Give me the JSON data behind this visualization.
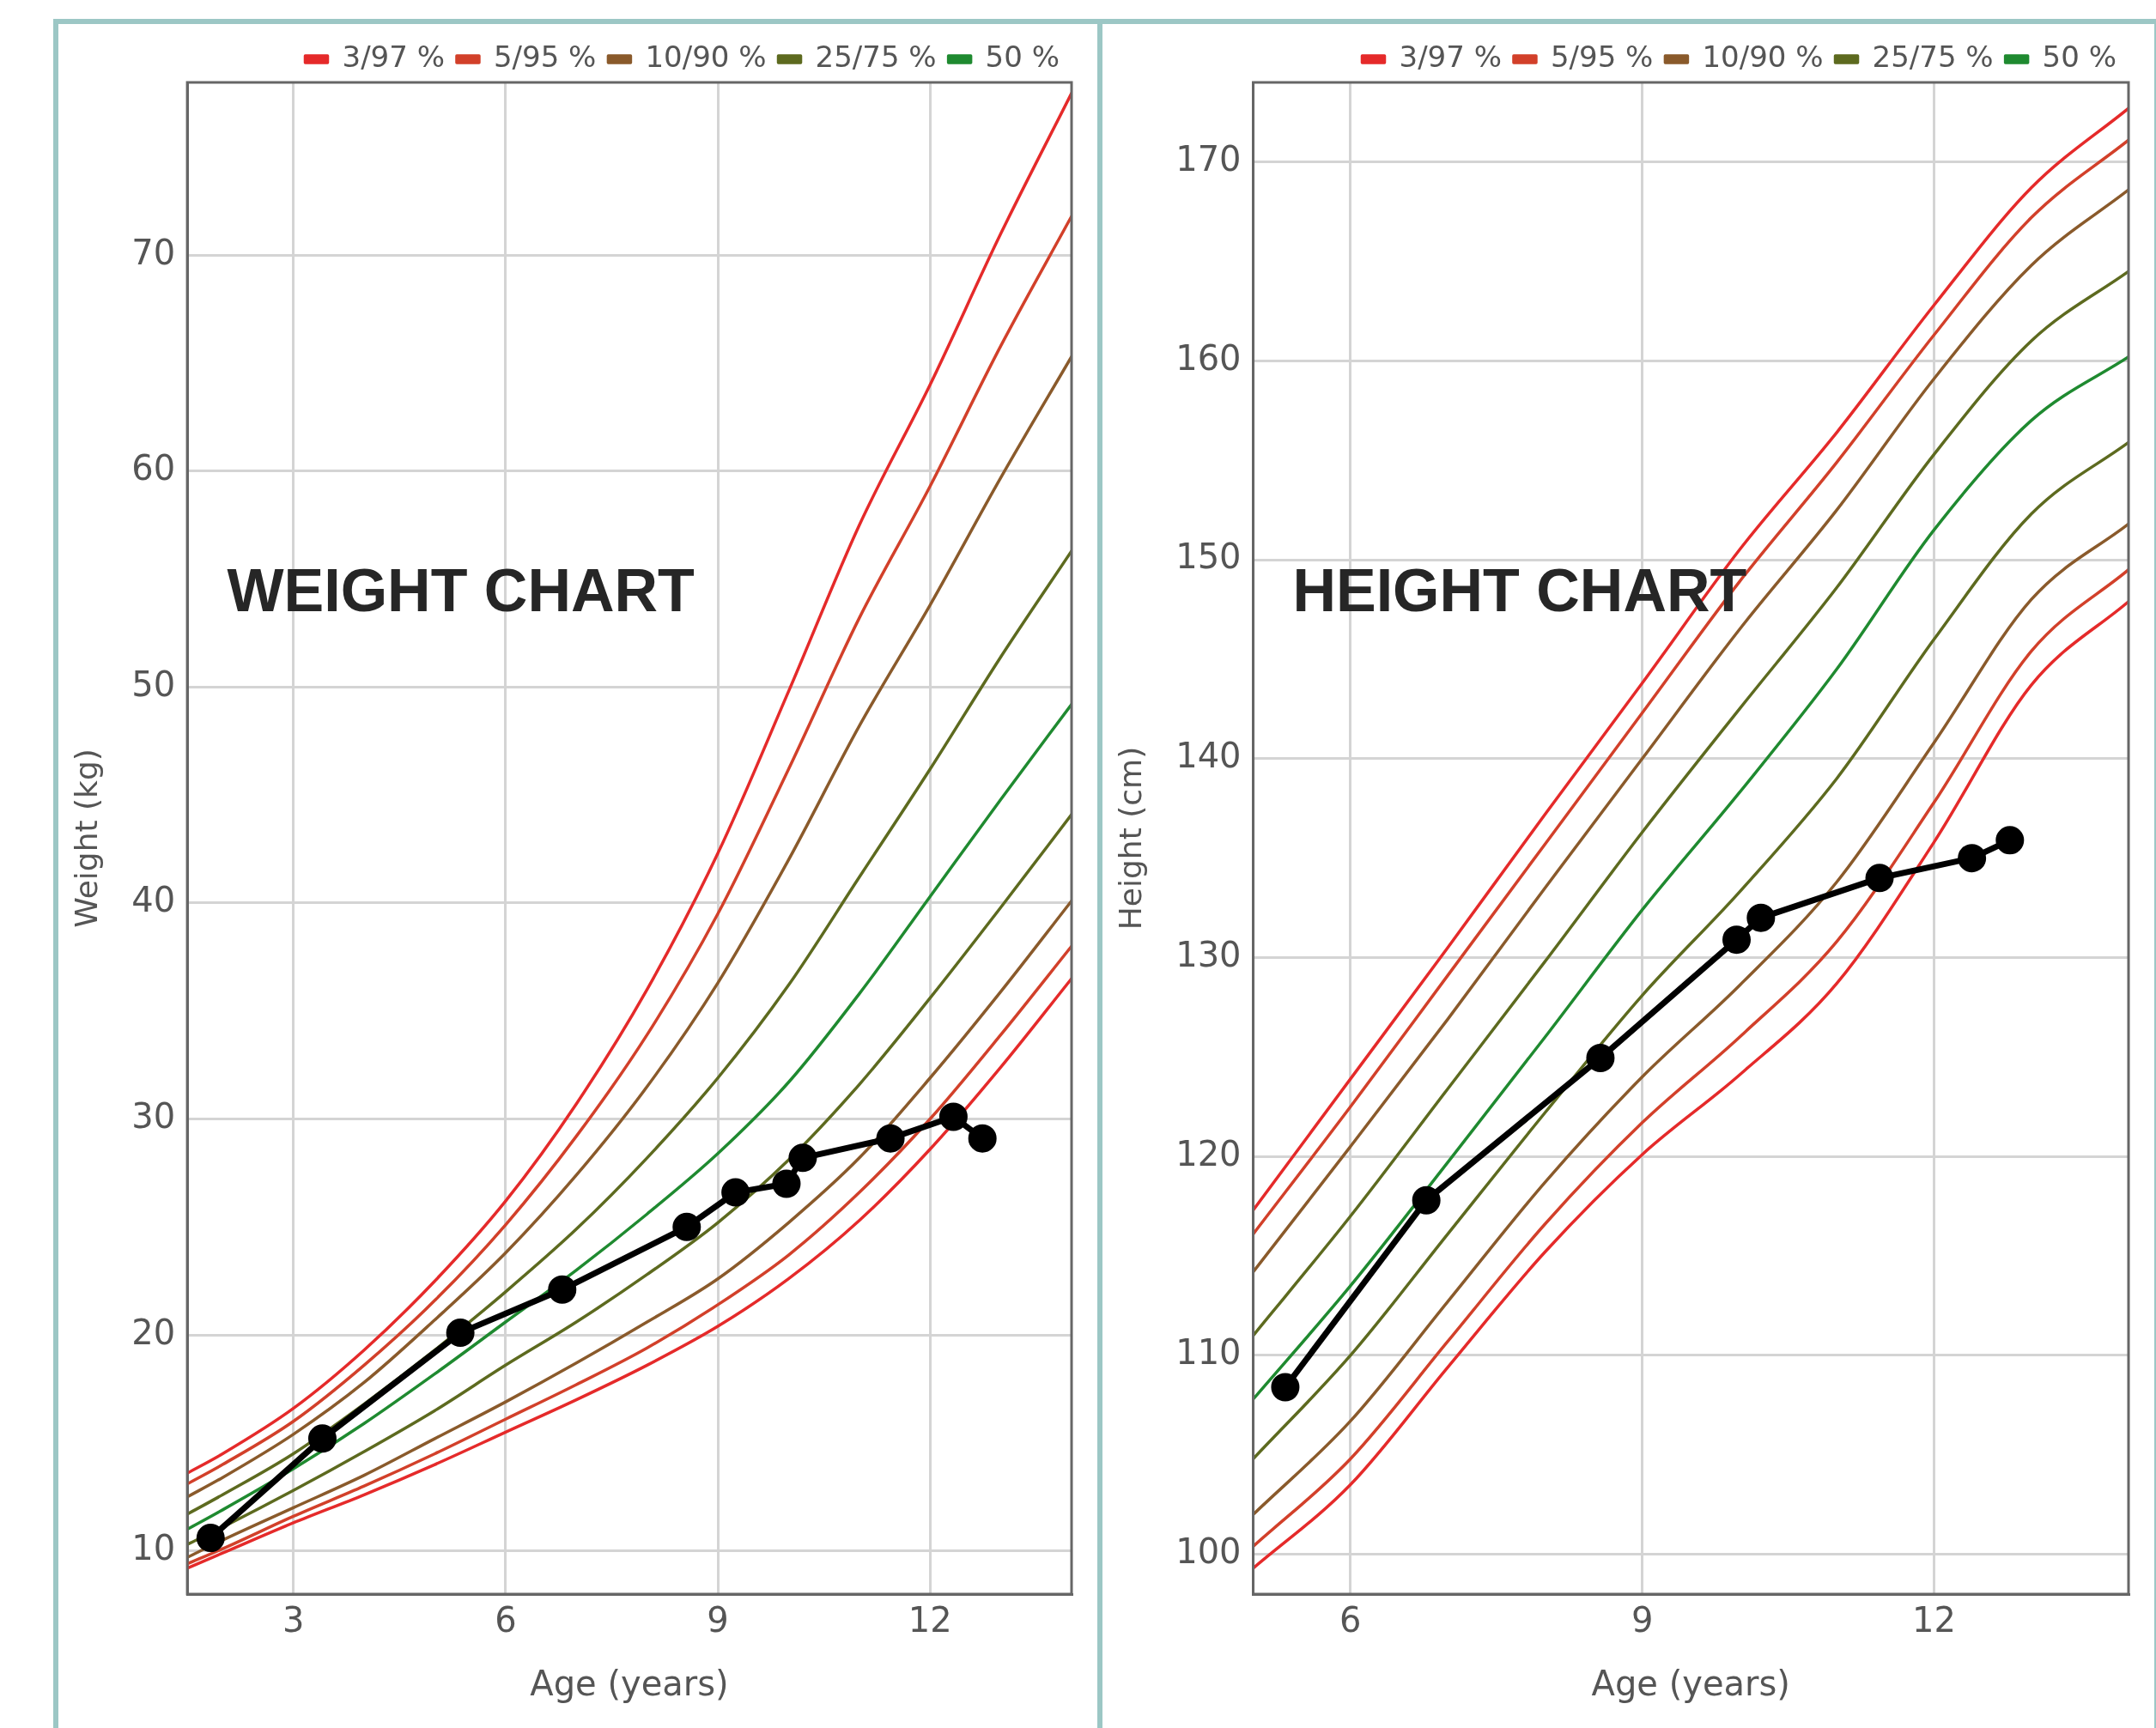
{
  "chart_data": [
    {
      "type": "line",
      "xlabel": "Age (years)",
      "ylabel": "Weight (kg)",
      "annotations": [
        "WEIGHT CHART"
      ],
      "x": [
        1.5,
        2,
        3,
        4,
        5,
        6,
        7,
        8,
        9,
        10,
        11,
        12,
        13,
        14
      ],
      "xlim": [
        1.5,
        14
      ],
      "xticks": [
        3,
        6,
        9,
        12
      ],
      "ylim": [
        8,
        78
      ],
      "yticks": [
        10,
        20,
        30,
        40,
        50,
        60,
        70
      ],
      "grid": true,
      "legend": "top right",
      "marker": "none",
      "line_style": "solid",
      "series": [
        {
          "name": "3/97 %",
          "color": "#e52a2a",
          "values": [
            9.2,
            9.9,
            11.3,
            12.6,
            14.0,
            15.5,
            17.0,
            18.6,
            20.4,
            22.6,
            25.3,
            28.6,
            32.4,
            36.5
          ]
        },
        {
          "name": "5/95 %",
          "color": "#d2402a",
          "values": [
            9.4,
            10.1,
            11.6,
            13.0,
            14.5,
            16.1,
            17.7,
            19.4,
            21.4,
            23.7,
            26.6,
            30.0,
            33.9,
            38.0
          ]
        },
        {
          "name": "10/90 %",
          "color": "#8a5a2b",
          "values": [
            9.7,
            10.5,
            12.0,
            13.5,
            15.2,
            16.9,
            18.7,
            20.6,
            22.6,
            25.2,
            28.2,
            31.9,
            35.9,
            40.1
          ]
        },
        {
          "name": "25/75 %",
          "color": "#5d6a1f",
          "values": [
            10.3,
            11.1,
            12.8,
            14.6,
            16.5,
            18.6,
            20.6,
            22.8,
            25.2,
            28.1,
            31.6,
            35.6,
            39.8,
            44.1
          ]
        },
        {
          "name": "50 %",
          "color": "#1f8a30",
          "values": [
            11.0,
            11.9,
            13.8,
            15.9,
            18.2,
            20.6,
            23.0,
            25.6,
            28.4,
            31.7,
            35.8,
            40.3,
            44.8,
            49.2
          ]
        },
        {
          "color": "#5d6a1f",
          "values": [
            11.7,
            12.6,
            14.5,
            16.8,
            19.3,
            22.0,
            24.9,
            28.2,
            31.9,
            36.2,
            41.2,
            46.2,
            51.4,
            56.3
          ]
        },
        {
          "color": "#8a5a2b",
          "values": [
            12.5,
            13.4,
            15.4,
            17.8,
            20.7,
            23.8,
            27.4,
            31.5,
            36.3,
            42.0,
            48.2,
            53.8,
            59.7,
            65.3
          ]
        },
        {
          "color": "#d2402a",
          "values": [
            13.1,
            14.0,
            16.0,
            18.6,
            21.6,
            25.1,
            29.2,
            33.9,
            39.5,
            46.2,
            53.2,
            59.3,
            65.8,
            71.8
          ]
        },
        {
          "color": "#e52a2a",
          "values": [
            13.6,
            14.5,
            16.6,
            19.3,
            22.5,
            26.2,
            30.7,
            36.0,
            42.3,
            49.8,
            57.5,
            64.0,
            71.0,
            77.5
          ]
        },
        {
          "color": "#000000",
          "marker": "circle",
          "x": [
            1.83,
            3.41,
            5.36,
            6.8,
            8.56,
            9.25,
            9.97,
            10.2,
            11.44,
            12.33,
            12.74
          ],
          "values": [
            10.6,
            15.2,
            20.1,
            22.1,
            25.0,
            26.6,
            27.0,
            28.2,
            29.1,
            30.1,
            29.1
          ]
        }
      ]
    },
    {
      "type": "line",
      "xlabel": "Age (years)",
      "ylabel": "Height (cm)",
      "annotations": [
        "HEIGHT CHART"
      ],
      "x": [
        5,
        6,
        7,
        8,
        9,
        10,
        11,
        12,
        13,
        14
      ],
      "xlim": [
        5,
        14
      ],
      "xticks": [
        6,
        9,
        12
      ],
      "ylim": [
        98,
        174
      ],
      "yticks": [
        100,
        110,
        120,
        130,
        140,
        150,
        160,
        170
      ],
      "grid": true,
      "legend": "top right",
      "marker": "none",
      "line_style": "solid",
      "series": [
        {
          "name": "3/97 %",
          "color": "#e52a2a",
          "values": [
            99.3,
            103.5,
            109.4,
            115.2,
            120.1,
            124.1,
            128.7,
            135.8,
            143.7,
            147.9
          ]
        },
        {
          "name": "5/95 %",
          "color": "#d2402a",
          "values": [
            100.4,
            104.8,
            110.7,
            116.6,
            121.7,
            126.0,
            130.8,
            137.8,
            145.4,
            149.5
          ]
        },
        {
          "name": "10/90 %",
          "color": "#8a5a2b",
          "values": [
            102.0,
            106.7,
            112.7,
            118.7,
            124.0,
            128.6,
            133.8,
            140.8,
            148.0,
            151.8
          ]
        },
        {
          "name": "25/75 %",
          "color": "#5d6a1f",
          "values": [
            104.8,
            110.0,
            116.1,
            122.2,
            128.1,
            133.3,
            139.0,
            146.0,
            152.3,
            155.9
          ]
        },
        {
          "name": "50 %",
          "color": "#1f8a30",
          "values": [
            107.8,
            113.5,
            119.7,
            126.0,
            132.4,
            138.3,
            144.5,
            151.5,
            157.0,
            160.2
          ]
        },
        {
          "color": "#5d6a1f",
          "values": [
            111.0,
            117.0,
            123.4,
            129.8,
            136.3,
            142.5,
            148.6,
            155.3,
            161.0,
            164.5
          ]
        },
        {
          "color": "#8a5a2b",
          "values": [
            114.2,
            120.5,
            126.9,
            133.5,
            140.0,
            146.5,
            152.5,
            159.1,
            164.8,
            168.6
          ]
        },
        {
          "color": "#d2402a",
          "values": [
            116.1,
            122.5,
            129.1,
            135.7,
            142.3,
            148.9,
            154.9,
            161.3,
            167.2,
            171.1
          ]
        },
        {
          "color": "#e52a2a",
          "values": [
            117.3,
            123.9,
            130.5,
            137.2,
            143.8,
            150.5,
            156.4,
            162.8,
            168.7,
            172.7
          ]
        },
        {
          "color": "#000000",
          "marker": "circle",
          "x": [
            5.33,
            6.78,
            8.57,
            9.97,
            10.22,
            11.44,
            12.39,
            12.78
          ],
          "values": [
            108.4,
            117.8,
            124.95,
            130.9,
            132.0,
            134.0,
            135.0,
            135.9
          ]
        }
      ]
    }
  ]
}
